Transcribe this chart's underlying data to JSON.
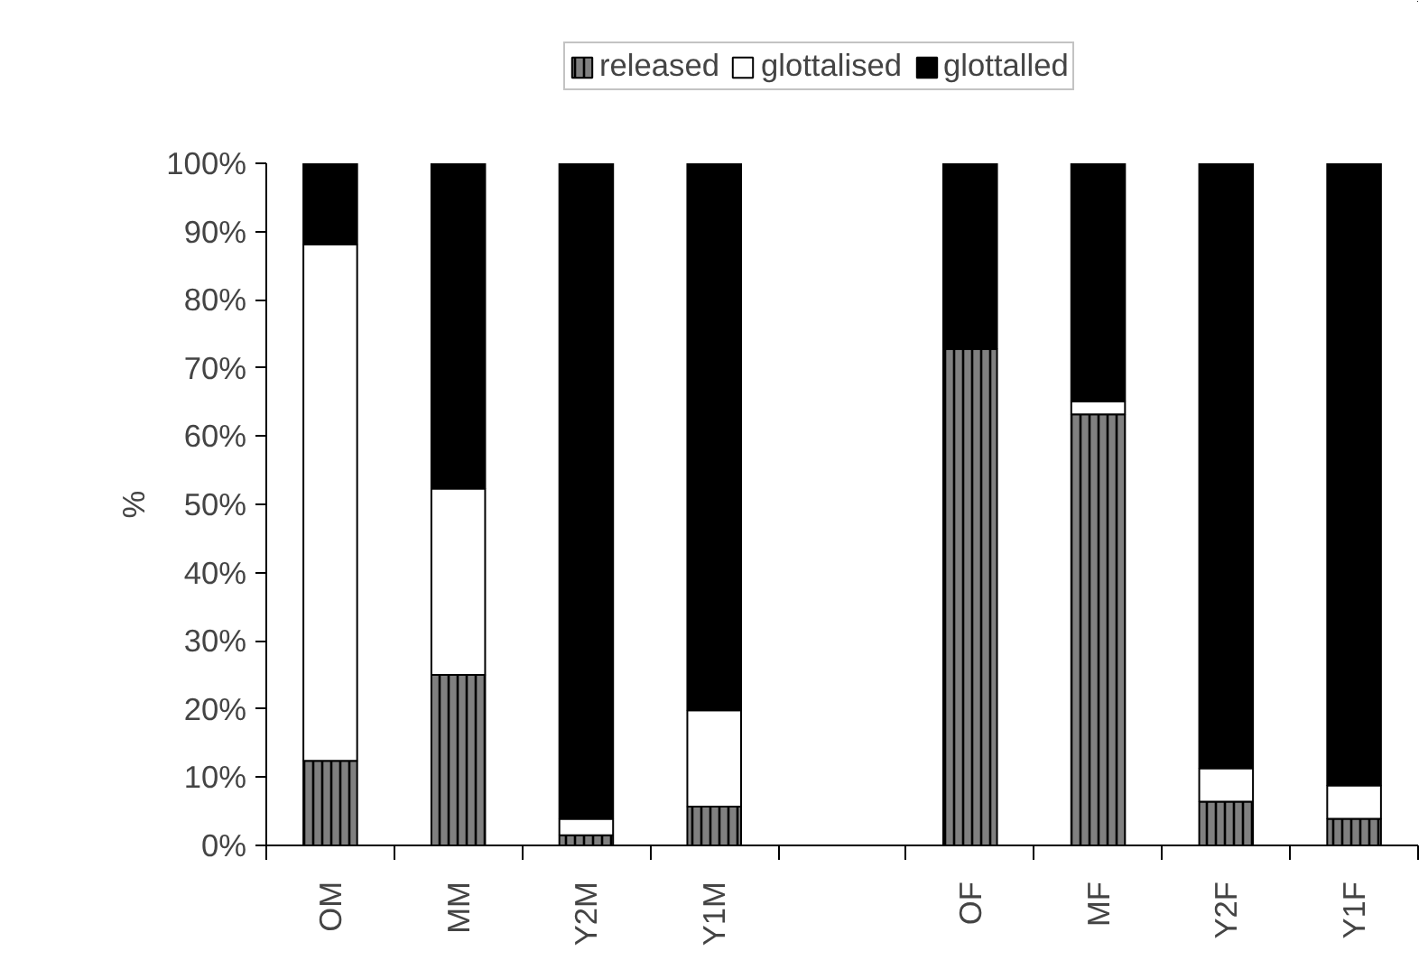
{
  "chart_data": {
    "type": "bar",
    "stacked": true,
    "ylabel": "%",
    "categories": [
      "OM",
      "MM",
      "Y2M",
      "Y1M",
      null,
      "OF",
      "MF",
      "Y2F",
      "Y1F"
    ],
    "series": [
      {
        "name": "released",
        "color": "#808080",
        "values": [
          12.4,
          25,
          1.5,
          5.7,
          null,
          72.8,
          63.2,
          6.4,
          3.9
        ]
      },
      {
        "name": "glottalised",
        "color": "#ffffff",
        "values": [
          75.7,
          27.3,
          2.4,
          14.1,
          null,
          0,
          1.9,
          4.9,
          4.9
        ]
      },
      {
        "name": "glottalled",
        "color": "#000000",
        "values": [
          11.9,
          47.7,
          96.1,
          80.2,
          null,
          27.2,
          34.9,
          88.7,
          91.2
        ]
      }
    ],
    "ylim": [
      0,
      100
    ],
    "yticks": [
      {
        "value": 0,
        "label": "0%"
      },
      {
        "value": 10,
        "label": "10%"
      },
      {
        "value": 20,
        "label": "20%"
      },
      {
        "value": 30,
        "label": "30%"
      },
      {
        "value": 40,
        "label": "40%"
      },
      {
        "value": 50,
        "label": "50%"
      },
      {
        "value": 60,
        "label": "60%"
      },
      {
        "value": 70,
        "label": "70%"
      },
      {
        "value": 80,
        "label": "80%"
      },
      {
        "value": 90,
        "label": "90%"
      },
      {
        "value": 100,
        "label": "100%"
      }
    ],
    "grid": false,
    "legend": "top"
  }
}
